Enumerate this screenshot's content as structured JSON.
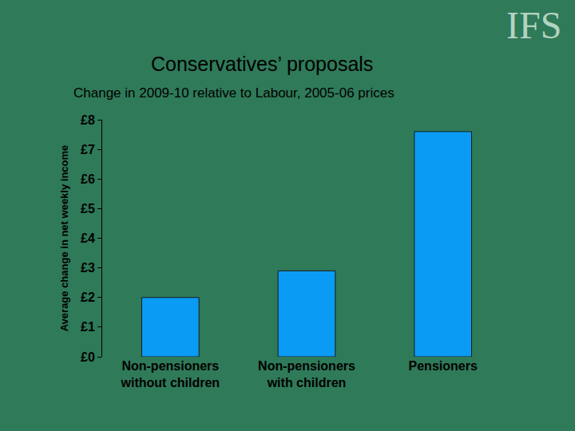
{
  "chart_data": {
    "type": "bar",
    "title": "Conservatives’ proposals",
    "subtitle": "Change in 2009-10 relative to Labour, 2005-06 prices",
    "y_label": "Average change in net weekly income",
    "annotations": [
      "IFS"
    ],
    "categories": [
      "Non-pensioners\nwithout children",
      "Non-pensioners\nwith children",
      "Pensioners"
    ],
    "values": [
      2.0,
      2.9,
      7.6
    ],
    "color": "#0a9bf5",
    "ylim": [
      0,
      8
    ],
    "yticks": [
      {
        "value": 0,
        "label": "£0"
      },
      {
        "value": 1,
        "label": "£1"
      },
      {
        "value": 2,
        "label": "£2"
      },
      {
        "value": 3,
        "label": "£3"
      },
      {
        "value": 4,
        "label": "£4"
      },
      {
        "value": 5,
        "label": "£5"
      },
      {
        "value": 6,
        "label": "£6"
      },
      {
        "value": 7,
        "label": "£7"
      },
      {
        "value": 8,
        "label": "£8"
      }
    ],
    "grid": false
  }
}
